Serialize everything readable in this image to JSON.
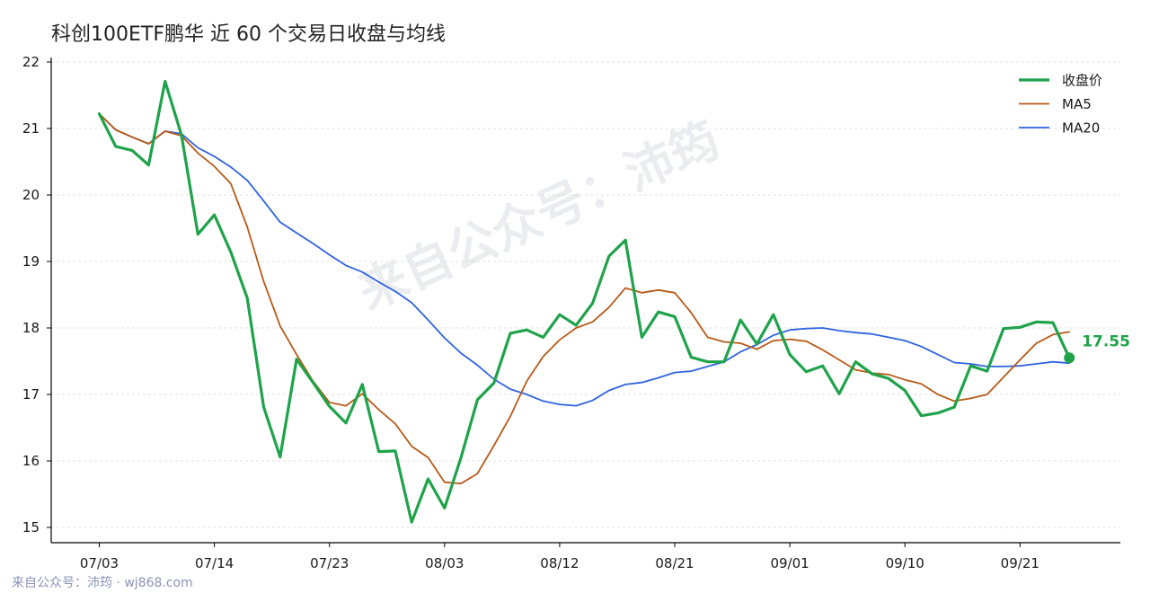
{
  "chart_data": {
    "type": "line",
    "title": "科创100ETF鹏华 近 60 个交易日收盘与均线",
    "xlabel": "",
    "ylabel": "",
    "ylim": [
      14.8,
      22.1
    ],
    "yticks": [
      15,
      16,
      17,
      18,
      19,
      20,
      21,
      22
    ],
    "xtick_labels": [
      "07/03",
      "07/14",
      "07/23",
      "08/03",
      "08/12",
      "08/21",
      "09/01",
      "09/10",
      "09/21"
    ],
    "xtick_indices": [
      0,
      7,
      14,
      21,
      28,
      35,
      42,
      49,
      56
    ],
    "grid": "horizontal dashed",
    "legend_position": "top-right",
    "series": [
      {
        "name": "收盘价",
        "color": "#1fa34a",
        "values": [
          21.22,
          20.73,
          20.67,
          20.45,
          21.71,
          20.9,
          19.41,
          19.7,
          19.14,
          18.45,
          16.81,
          16.06,
          17.53,
          17.18,
          16.82,
          16.57,
          17.15,
          16.14,
          16.15,
          15.08,
          15.73,
          15.29,
          16.05,
          16.92,
          17.17,
          17.92,
          17.97,
          17.86,
          18.2,
          18.04,
          18.37,
          19.08,
          19.32,
          17.86,
          18.24,
          18.17,
          17.56,
          17.49,
          17.49,
          18.12,
          17.76,
          18.2,
          17.6,
          17.34,
          17.43,
          17.01,
          17.49,
          17.31,
          17.24,
          17.06,
          16.68,
          16.72,
          16.81,
          17.43,
          17.35,
          17.99,
          18.01,
          18.09,
          18.08,
          17.55
        ]
      },
      {
        "name": "MA5",
        "color": "#b85a18",
        "values": [
          21.22,
          20.98,
          20.87,
          20.77,
          20.96,
          20.89,
          20.63,
          20.43,
          20.17,
          19.52,
          18.7,
          18.03,
          17.6,
          17.2,
          16.88,
          16.83,
          17.01,
          16.77,
          16.56,
          16.22,
          16.05,
          15.68,
          15.66,
          15.81,
          16.23,
          16.67,
          17.2,
          17.57,
          17.82,
          18.0,
          18.09,
          18.31,
          18.6,
          18.53,
          18.57,
          18.53,
          18.23,
          17.86,
          17.79,
          17.77,
          17.68,
          17.81,
          17.83,
          17.8,
          17.67,
          17.52,
          17.37,
          17.32,
          17.3,
          17.22,
          17.16,
          17.0,
          16.9,
          16.94,
          17.0,
          17.26,
          17.52,
          17.77,
          17.9,
          17.94
        ]
      },
      {
        "name": "MA20",
        "color": "#2f63e0",
        "values": [
          21.22,
          20.98,
          20.87,
          20.77,
          20.96,
          20.92,
          20.71,
          20.58,
          20.42,
          20.22,
          19.91,
          19.59,
          19.43,
          19.27,
          19.1,
          18.94,
          18.84,
          18.69,
          18.55,
          18.38,
          18.12,
          17.85,
          17.62,
          17.44,
          17.23,
          17.08,
          17.0,
          16.9,
          16.85,
          16.83,
          16.91,
          17.06,
          17.15,
          17.18,
          17.25,
          17.33,
          17.35,
          17.42,
          17.49,
          17.64,
          17.75,
          17.89,
          17.97,
          17.99,
          18.0,
          17.96,
          17.93,
          17.91,
          17.86,
          17.81,
          17.72,
          17.6,
          17.48,
          17.46,
          17.42,
          17.42,
          17.43,
          17.46,
          17.49,
          17.47
        ]
      }
    ],
    "end_label": "17.55"
  },
  "footer": {
    "text": "来自公众号：沛筠 · wj868.com"
  },
  "watermark": {
    "text": "来自公众号：沛筠"
  }
}
